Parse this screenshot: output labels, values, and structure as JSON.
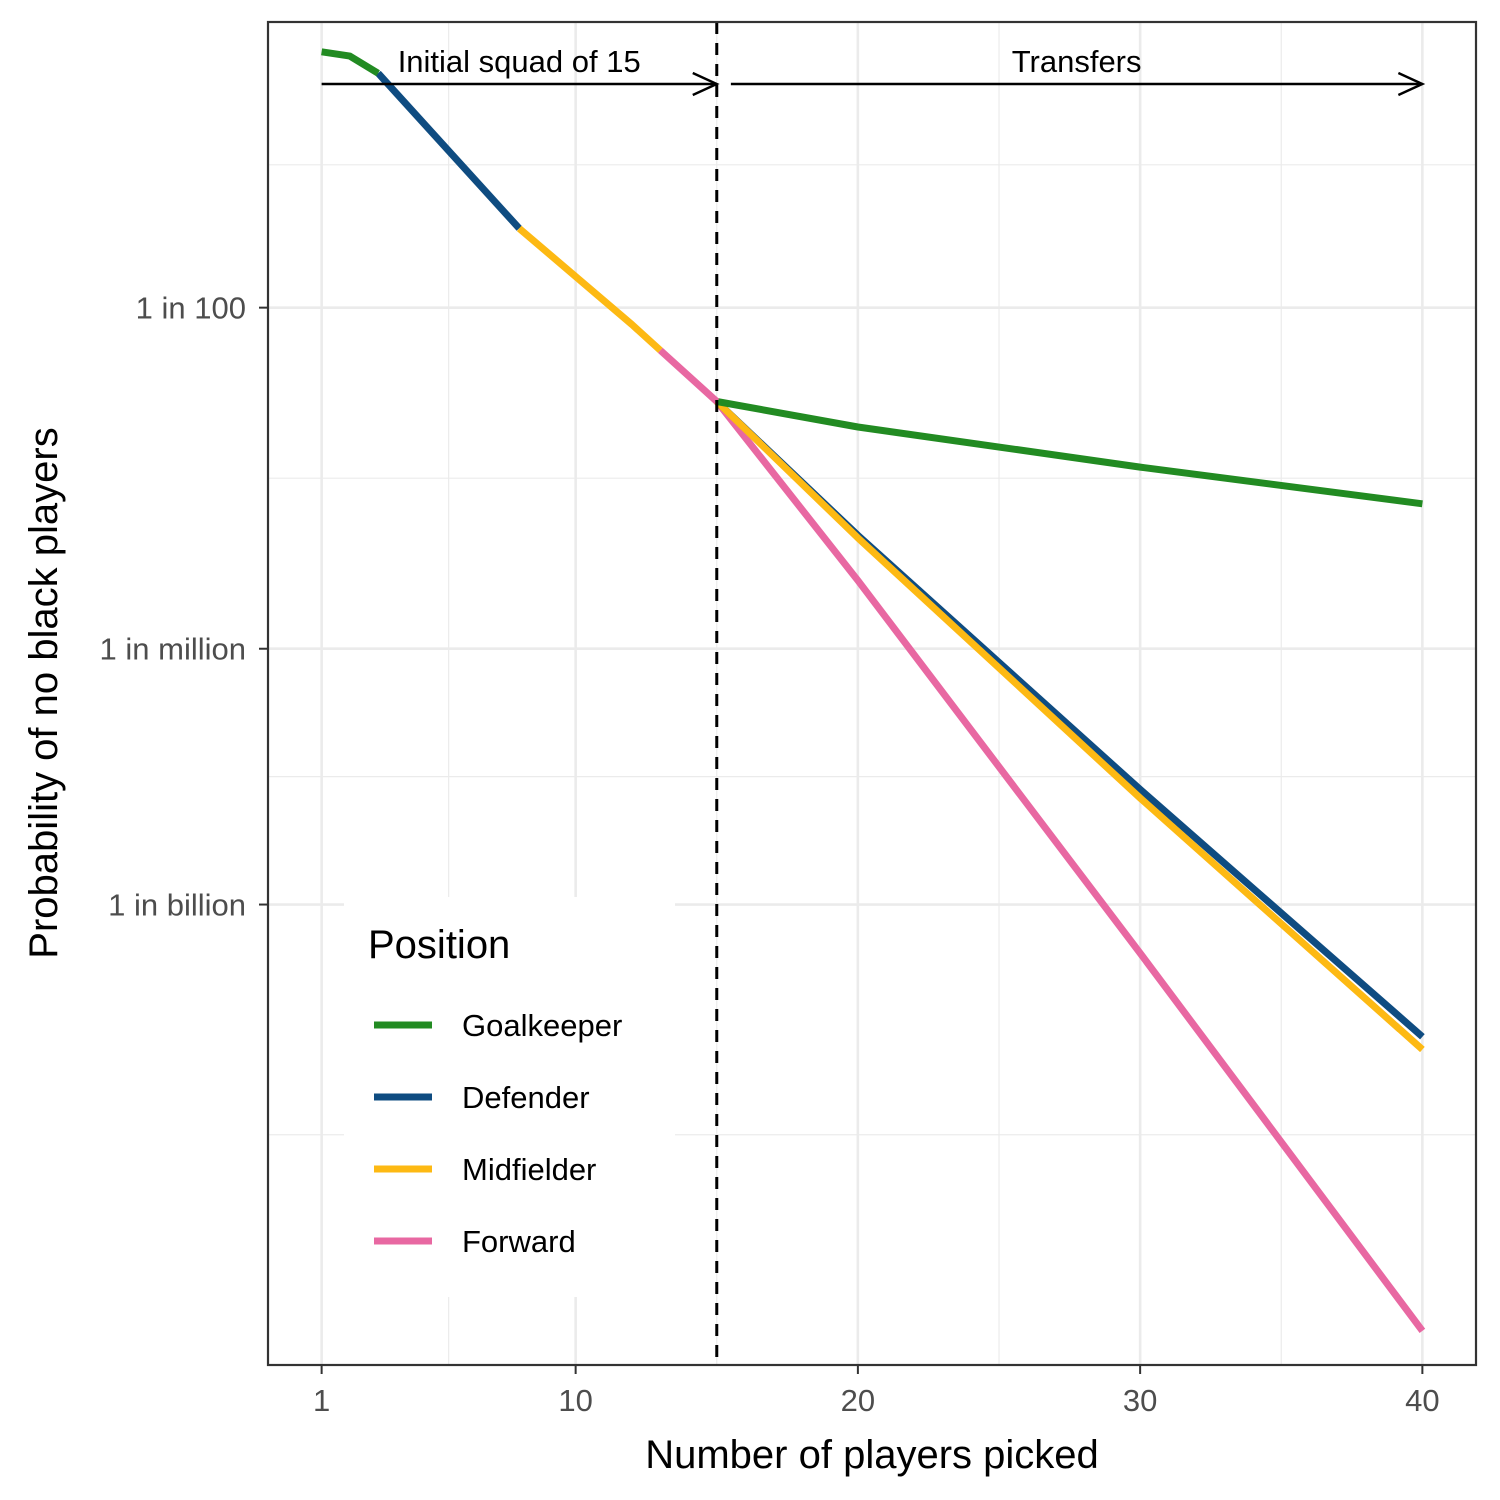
{
  "chart_data": {
    "type": "line",
    "xlabel": "Number of players picked",
    "ylabel": "Probability of no black players",
    "x_ticks": [
      1,
      10,
      20,
      30,
      40
    ],
    "y_ticks": [
      {
        "label": "1 in 100",
        "value": 0.01
      },
      {
        "label": "1 in million",
        "value": 1e-06
      },
      {
        "label": "1 in billion",
        "value": 1e-09
      }
    ],
    "y_scale": "log",
    "xlim": [
      -0.9,
      41.9
    ],
    "ylim_log10": [
      -14.4,
      1.35
    ],
    "grid": true,
    "annotations": [
      {
        "text": "Initial squad of 15",
        "x_from": 1,
        "x_to": 15,
        "arrow": "right"
      },
      {
        "text": "Transfers",
        "x_from": 15.5,
        "x_to": 40,
        "arrow": "right"
      }
    ],
    "vline": {
      "x": 15,
      "style": "dashed"
    },
    "legend": {
      "title": "Position",
      "placement": "bottom-left"
    },
    "series": [
      {
        "name": "Goalkeeper",
        "color": "#228B22",
        "segment": "initial",
        "x": [
          1,
          2,
          3
        ],
        "y_log10": [
          1.0,
          0.95,
          0.75
        ]
      },
      {
        "name": "Defender",
        "color": "#0F4C81",
        "segment": "initial",
        "x": [
          3,
          8
        ],
        "y_log10": [
          0.75,
          -1.07
        ]
      },
      {
        "name": "Midfielder",
        "color": "#FDB913",
        "segment": "initial",
        "x": [
          8,
          12,
          13
        ],
        "y_log10": [
          -1.07,
          -2.2,
          -2.5
        ]
      },
      {
        "name": "Forward",
        "color": "#E868A2",
        "segment": "initial",
        "x": [
          13,
          15
        ],
        "y_log10": [
          -2.5,
          -3.1
        ]
      },
      {
        "name": "Goalkeeper",
        "color": "#228B22",
        "segment": "transfers",
        "x": [
          15,
          20,
          30,
          40
        ],
        "y_log10": [
          -3.1,
          -3.4,
          -3.87,
          -4.3
        ]
      },
      {
        "name": "Defender",
        "color": "#0F4C81",
        "segment": "transfers",
        "x": [
          15,
          20,
          30,
          40
        ],
        "y_log10": [
          -3.1,
          -4.67,
          -7.65,
          -10.55
        ]
      },
      {
        "name": "Midfielder",
        "color": "#FDB913",
        "segment": "transfers",
        "x": [
          15,
          20,
          30,
          40
        ],
        "y_log10": [
          -3.1,
          -4.7,
          -7.75,
          -10.7
        ]
      },
      {
        "name": "Forward",
        "color": "#E868A2",
        "segment": "transfers",
        "x": [
          15,
          20,
          30,
          40
        ],
        "y_log10": [
          -3.1,
          -5.2,
          -9.57,
          -14.0
        ]
      }
    ]
  }
}
